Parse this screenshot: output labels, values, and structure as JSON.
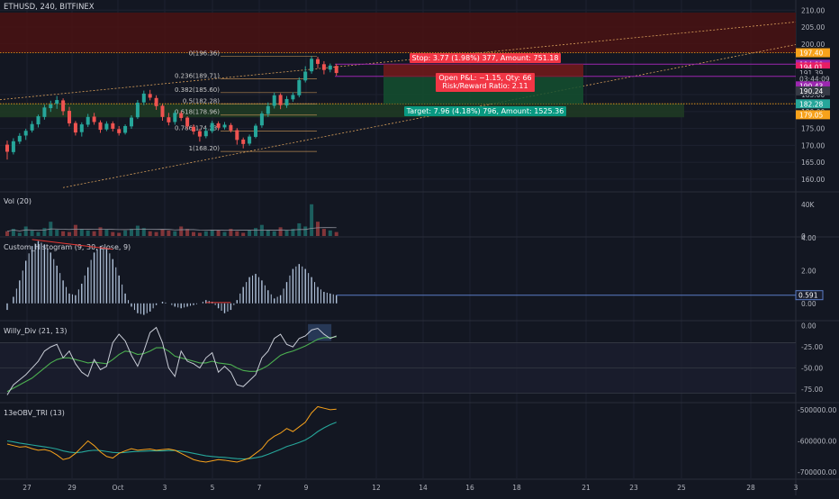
{
  "symbol_title": "ETHUSD, 240, BITFINEX",
  "colors": {
    "background": "#131722",
    "grid": "#1e2230",
    "up": "#26a69a",
    "down": "#ef5350",
    "axis_text": "#b2b5be",
    "stop": "#f23645",
    "target": "#089981",
    "obv_fast": "#f7a21b",
    "obv_slow": "#26a69a",
    "fib": "#d9a05b"
  },
  "time_axis": {
    "labels": [
      "27",
      "29",
      "Oct",
      "3",
      "5",
      "7",
      "9",
      "12",
      "14",
      "16",
      "18",
      "21",
      "23",
      "25",
      "28",
      "3"
    ]
  },
  "price_panel": {
    "y_ticks": [
      "210.00",
      "205.00",
      "200.00",
      "185.00",
      "180.00",
      "175.00",
      "170.00",
      "165.00",
      "160.00"
    ],
    "price_badges": [
      {
        "label": "197.40",
        "color": "#f7a21b",
        "price": 197.4
      },
      {
        "label": "194.00",
        "color": "#9c27b0",
        "price": 194.0
      },
      {
        "label": "194.01",
        "color": "#e91e63",
        "price": 193.2
      },
      {
        "label": "191.39",
        "color": "#131722",
        "price": 191.39
      },
      {
        "label": "03:44:09",
        "color": "#131722",
        "price": 189.7
      },
      {
        "label": "190.43",
        "color": "#9c27b0",
        "price": 187.6
      },
      {
        "label": "190.24",
        "color": "#363a45",
        "price": 186.1
      },
      {
        "label": "182.28",
        "color": "#26a69a",
        "price": 182.28
      },
      {
        "label": "179.05",
        "color": "#f7a21b",
        "price": 179.05
      }
    ],
    "fib_levels": [
      {
        "ratio": "0",
        "label": "0(196.36)",
        "price": 196.36
      },
      {
        "ratio": "0.236",
        "label": "0.236(189.71)",
        "price": 189.71
      },
      {
        "ratio": "0.382",
        "label": "0.382(185.60)",
        "price": 185.6
      },
      {
        "ratio": "0.5",
        "label": "0.5(182.28)",
        "price": 182.28
      },
      {
        "ratio": "0.618",
        "label": "0.618(178.96)",
        "price": 178.96
      },
      {
        "ratio": "0.786",
        "label": "0.786(174.23)",
        "price": 174.23
      },
      {
        "ratio": "1",
        "label": "1(168.20)",
        "price": 168.2
      }
    ],
    "position": {
      "stop_label": "Stop: 3.77 (1.98%) 377, Amount: 751.18",
      "pnl_label": "Open P&L: −1.15, Qty: 66",
      "rr_label": "Risk/Reward Ratio: 2.11",
      "target_label": "Target: 7.96 (4.18%) 796, Amount: 1525.36",
      "entry": 190.24,
      "stop": 194.01,
      "target": 182.28
    },
    "candles": [
      [
        170.2,
        168.1,
        171.4,
        165.8
      ],
      [
        168.0,
        171.2,
        172.1,
        167.3
      ],
      [
        171.1,
        172.8,
        173.6,
        170.4
      ],
      [
        172.9,
        174.3,
        174.9,
        171.6
      ],
      [
        174.4,
        176.3,
        177.2,
        173.8
      ],
      [
        176.2,
        178.6,
        179.1,
        175.3
      ],
      [
        178.4,
        181.2,
        182.0,
        177.6
      ],
      [
        181.0,
        182.1,
        183.2,
        179.9
      ],
      [
        182.3,
        183.4,
        184.6,
        180.8
      ],
      [
        183.3,
        180.1,
        183.9,
        178.9
      ],
      [
        180.2,
        176.5,
        181.4,
        175.6
      ],
      [
        176.6,
        173.8,
        177.2,
        172.9
      ],
      [
        173.9,
        176.2,
        176.8,
        172.6
      ],
      [
        176.1,
        178.4,
        179.3,
        175.4
      ],
      [
        178.5,
        176.9,
        179.6,
        176.1
      ],
      [
        176.8,
        174.6,
        177.4,
        173.7
      ],
      [
        174.7,
        176.4,
        177.1,
        174.2
      ],
      [
        176.5,
        174.9,
        177.1,
        174.1
      ],
      [
        174.8,
        173.6,
        175.7,
        172.9
      ],
      [
        173.7,
        175.7,
        176.2,
        173.2
      ],
      [
        175.6,
        178.2,
        178.9,
        174.9
      ],
      [
        178.3,
        182.6,
        183.4,
        177.8
      ],
      [
        182.7,
        185.3,
        186.2,
        181.9
      ],
      [
        185.2,
        184.1,
        186.4,
        183.3
      ],
      [
        184.0,
        181.6,
        184.8,
        180.5
      ],
      [
        181.7,
        178.4,
        182.2,
        177.3
      ],
      [
        178.3,
        176.8,
        179.6,
        175.9
      ],
      [
        176.9,
        179.6,
        180.3,
        176.1
      ],
      [
        179.5,
        178.1,
        180.1,
        177.2
      ],
      [
        178.2,
        175.6,
        178.6,
        174.8
      ],
      [
        175.5,
        174.1,
        176.2,
        173.2
      ],
      [
        174.2,
        172.6,
        174.9,
        171.1
      ],
      [
        172.7,
        174.3,
        175.1,
        172.1
      ],
      [
        174.2,
        176.6,
        177.3,
        173.6
      ],
      [
        176.5,
        175.2,
        177.1,
        174.6
      ],
      [
        175.3,
        176.1,
        176.9,
        174.7
      ],
      [
        176.0,
        174.4,
        176.6,
        173.8
      ],
      [
        174.5,
        171.6,
        175.1,
        170.2
      ],
      [
        171.7,
        170.4,
        172.3,
        169.1
      ],
      [
        170.5,
        172.6,
        173.2,
        169.9
      ],
      [
        172.5,
        175.8,
        176.4,
        172.1
      ],
      [
        175.9,
        179.4,
        180.1,
        175.2
      ],
      [
        179.3,
        181.6,
        182.7,
        178.4
      ],
      [
        181.7,
        184.8,
        185.6,
        180.9
      ],
      [
        184.9,
        181.9,
        185.4,
        180.7
      ],
      [
        181.8,
        183.7,
        184.6,
        181.1
      ],
      [
        183.6,
        184.9,
        185.7,
        182.9
      ],
      [
        184.8,
        189.3,
        190.1,
        184.2
      ],
      [
        189.2,
        191.8,
        193.4,
        188.6
      ],
      [
        191.9,
        195.6,
        196.4,
        191.2
      ],
      [
        195.5,
        194.1,
        196.2,
        192.8
      ],
      [
        194.0,
        192.3,
        194.9,
        191.0
      ],
      [
        192.4,
        193.6,
        194.2,
        191.6
      ],
      [
        193.5,
        191.4,
        194.1,
        190.6
      ]
    ]
  },
  "vol_panel": {
    "title": "Vol (20)",
    "y_ticks": [
      "40K",
      "0"
    ],
    "values": [
      6,
      9,
      4,
      12,
      7,
      5,
      10,
      18,
      8,
      6,
      5,
      14,
      9,
      7,
      6,
      11,
      8,
      5,
      4,
      7,
      9,
      13,
      10,
      6,
      5,
      8,
      7,
      6,
      12,
      9,
      5,
      4,
      6,
      8,
      7,
      5,
      9,
      6,
      4,
      7,
      10,
      14,
      8,
      6,
      11,
      7,
      9,
      16,
      12,
      40,
      18,
      9,
      7,
      5
    ]
  },
  "hist_panel": {
    "title": "Custom_Histogram (9, 30, close, 9)",
    "y_ticks": [
      "4.00",
      "2.00",
      "0.00"
    ],
    "ylim": [
      -1,
      4
    ],
    "last_label": "0.591",
    "values": [
      -0.4,
      0.4,
      1.4,
      2.6,
      3.5,
      3.8,
      3.6,
      3.1,
      2.3,
      1.4,
      0.6,
      0.5,
      1.2,
      2.2,
      3.1,
      3.5,
      3.4,
      2.7,
      1.7,
      0.6,
      -0.2,
      -0.6,
      -0.7,
      -0.5,
      -0.1,
      0.1,
      0.0,
      -0.2,
      -0.3,
      -0.2,
      -0.1,
      0.0,
      0.2,
      0.1,
      -0.3,
      -0.6,
      -0.4,
      0.2,
      1.0,
      1.6,
      1.8,
      1.4,
      0.8,
      0.3,
      0.5,
      1.3,
      2.1,
      2.4,
      2.1,
      1.6,
      1.0,
      0.7,
      0.6,
      0.5
    ]
  },
  "willy_panel": {
    "title": "Willy_Div (21, 13)",
    "y_ticks": [
      "0.00",
      "-25.00",
      "-50.00",
      "-75.00"
    ],
    "ylim": [
      -90,
      5
    ],
    "fast": [
      -82,
      -70,
      -64,
      -58,
      -50,
      -42,
      -30,
      -25,
      -22,
      -38,
      -30,
      -45,
      -55,
      -60,
      -40,
      -52,
      -48,
      -20,
      -10,
      -18,
      -35,
      -48,
      -30,
      -8,
      -2,
      -20,
      -50,
      -60,
      -30,
      -42,
      -45,
      -50,
      -38,
      -32,
      -55,
      -48,
      -55,
      -70,
      -72,
      -65,
      -58,
      -38,
      -30,
      -15,
      -10,
      -22,
      -25,
      -15,
      -12,
      -5,
      -3,
      -10,
      -15,
      -12
    ],
    "slow": [
      -78,
      -74,
      -70,
      -66,
      -62,
      -56,
      -50,
      -44,
      -40,
      -38,
      -38,
      -40,
      -42,
      -44,
      -43,
      -44,
      -45,
      -40,
      -34,
      -30,
      -31,
      -34,
      -33,
      -30,
      -26,
      -26,
      -30,
      -36,
      -38,
      -40,
      -42,
      -44,
      -44,
      -42,
      -44,
      -45,
      -46,
      -50,
      -53,
      -54,
      -54,
      -51,
      -47,
      -41,
      -35,
      -32,
      -30,
      -27,
      -24,
      -20,
      -16,
      -14,
      -14,
      -13
    ]
  },
  "obv_panel": {
    "title": "13eOBV_TRI (13)",
    "y_ticks": [
      "-500000.00",
      "-600000.00",
      "-700000.00"
    ],
    "ylim": [
      -720000,
      -480000
    ],
    "fast": [
      -610000,
      -615000,
      -620000,
      -618000,
      -625000,
      -630000,
      -628000,
      -633000,
      -645000,
      -660000,
      -655000,
      -640000,
      -620000,
      -600000,
      -615000,
      -635000,
      -650000,
      -655000,
      -640000,
      -632000,
      -625000,
      -630000,
      -628000,
      -626000,
      -630000,
      -628000,
      -626000,
      -630000,
      -640000,
      -650000,
      -660000,
      -665000,
      -668000,
      -664000,
      -660000,
      -662000,
      -665000,
      -668000,
      -662000,
      -655000,
      -640000,
      -625000,
      -600000,
      -585000,
      -575000,
      -560000,
      -570000,
      -555000,
      -540000,
      -510000,
      -490000,
      -495000,
      -500000,
      -498000
    ],
    "slow": [
      -600000,
      -603000,
      -607000,
      -610000,
      -613000,
      -616000,
      -619000,
      -622000,
      -626000,
      -632000,
      -636000,
      -638000,
      -636000,
      -632000,
      -630000,
      -631000,
      -634000,
      -637000,
      -638000,
      -637000,
      -635000,
      -634000,
      -633000,
      -632000,
      -632000,
      -632000,
      -631000,
      -631000,
      -633000,
      -636000,
      -640000,
      -644000,
      -648000,
      -650000,
      -652000,
      -653000,
      -655000,
      -657000,
      -658000,
      -657000,
      -654000,
      -650000,
      -643000,
      -635000,
      -627000,
      -618000,
      -612000,
      -605000,
      -597000,
      -585000,
      -570000,
      -558000,
      -548000,
      -540000
    ]
  }
}
